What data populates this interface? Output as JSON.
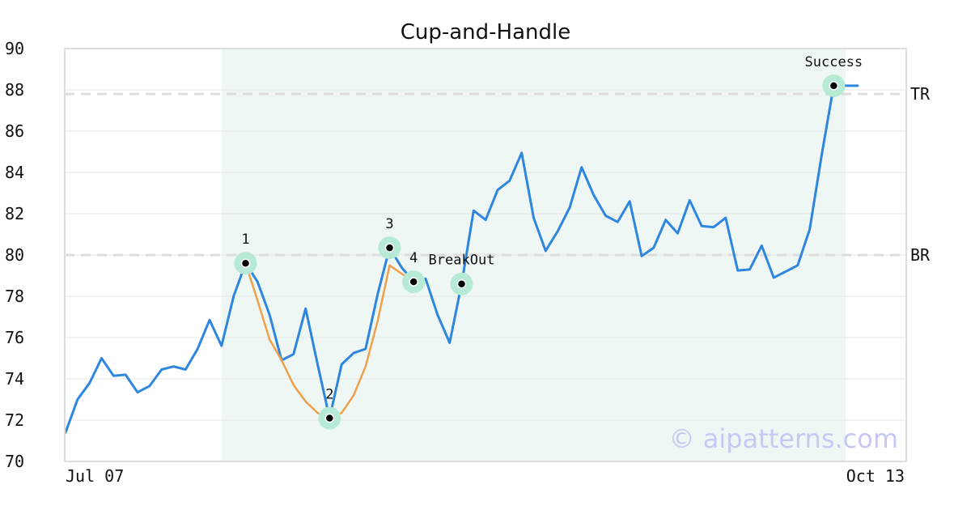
{
  "chart_data": {
    "type": "line",
    "title": "Cup-and-Handle",
    "xlabel": "",
    "ylabel": "",
    "ylim": [
      70,
      90
    ],
    "y_ticks": [
      "70",
      "72",
      "74",
      "76",
      "78",
      "80",
      "82",
      "84",
      "86",
      "88",
      "90"
    ],
    "x_tick_labels": [
      "Jul 07",
      "Oct 13"
    ],
    "grid": "horizontal",
    "series": [
      {
        "values": [
          71.4,
          73.0,
          73.8,
          75.0,
          74.15,
          74.2,
          73.35,
          73.65,
          74.45,
          74.6,
          74.45,
          75.45,
          76.85,
          75.6,
          78.0,
          79.6,
          78.7,
          77.1,
          74.9,
          75.2,
          77.4,
          74.7,
          72.1,
          74.7,
          75.25,
          75.45,
          78.1,
          80.35,
          79.4,
          78.7,
          78.85,
          77.1,
          75.75,
          78.6,
          82.15,
          81.7,
          83.15,
          83.6,
          84.95,
          81.8,
          80.2,
          81.15,
          82.3,
          84.25,
          82.9,
          81.9,
          81.6,
          82.6,
          79.95,
          80.35,
          81.7,
          81.05,
          82.65,
          81.4,
          81.35,
          81.8,
          79.25,
          79.3,
          80.45,
          78.9,
          79.2,
          79.5,
          81.25,
          84.85,
          88.2,
          88.2,
          88.2
        ],
        "color": "#2e86de"
      },
      {
        "start_index": 15,
        "values": [
          79.6,
          77.8,
          75.9,
          74.9,
          73.7,
          72.9,
          72.35,
          72.1,
          72.35,
          73.2,
          74.6,
          76.8,
          79.5,
          79.1,
          78.7
        ],
        "color": "#f0a04b"
      }
    ],
    "pattern_region": {
      "start_index": 13,
      "end_index": 65
    },
    "reference_lines": [
      {
        "label": "TR",
        "value": 87.8
      },
      {
        "label": "BR",
        "value": 80.0
      }
    ],
    "annotations": [
      {
        "label": "1",
        "index": 15,
        "value": 79.6
      },
      {
        "label": "2",
        "index": 22,
        "value": 72.1
      },
      {
        "label": "3",
        "index": 27,
        "value": 80.35
      },
      {
        "label": "4",
        "index": 29,
        "value": 78.7
      },
      {
        "label": "BreakOut",
        "index": 33,
        "value": 78.6
      },
      {
        "label": "Success",
        "index": 64,
        "value": 88.2
      }
    ],
    "colors": {
      "pattern_region": "#eef7f3",
      "marker_halo": "#b7ead4",
      "reference_line": "#dddddd",
      "grid": "#e6e6e6",
      "axis": "#dddddd"
    }
  },
  "watermark": "© aipatterns.com",
  "watermark_color": "#c8c8f5"
}
